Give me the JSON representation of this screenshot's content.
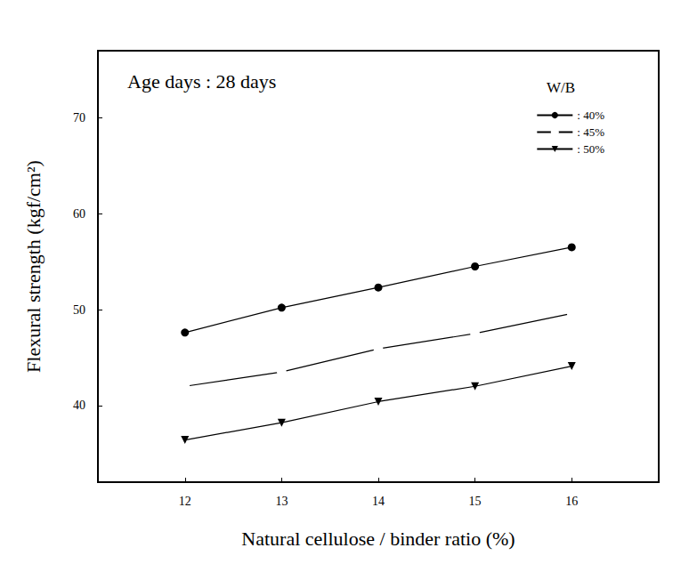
{
  "chart_data": {
    "type": "line",
    "x_label": "Natural cellulose / binder ratio (%)",
    "y_label": "Flexural strength (kgf/cm²)",
    "annotations": [
      "Age days : 28 days"
    ],
    "legend_title": "W/B",
    "legend": "upper right",
    "grid": false,
    "x": [
      12,
      13,
      14,
      15,
      16
    ],
    "xlim": [
      11.1,
      16.9
    ],
    "xticks": [
      12,
      13,
      14,
      15,
      16
    ],
    "ylim": [
      32,
      77
    ],
    "yticks": [
      40,
      50,
      60,
      70
    ],
    "series": [
      {
        "name": ": 40%",
        "color": "#000000",
        "marker": "circle",
        "line_style": "solid",
        "values": [
          47.6,
          50.2,
          52.3,
          54.5,
          56.5
        ]
      },
      {
        "name": ": 45%",
        "color": "#000000",
        "marker": "circle_open",
        "line_style": "solid",
        "values": [
          42.0,
          43.5,
          45.9,
          47.5,
          49.6
        ]
      },
      {
        "name": ": 50%",
        "color": "#000000",
        "marker": "triangle_down",
        "line_style": "solid",
        "values": [
          36.4,
          38.2,
          40.4,
          42.0,
          44.1
        ]
      }
    ]
  }
}
